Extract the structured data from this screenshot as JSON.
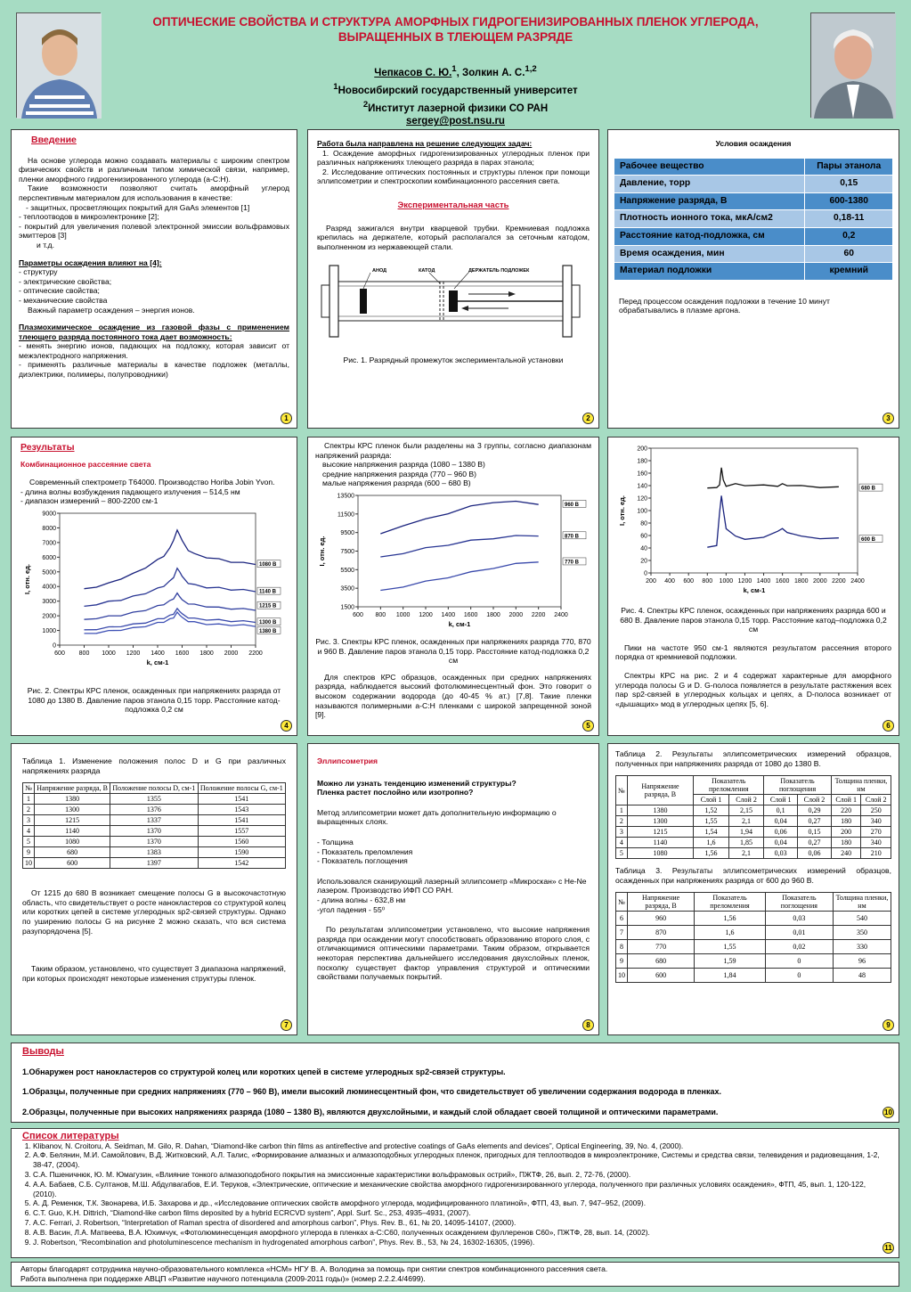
{
  "header": {
    "title_1": "ОПТИЧЕСКИЕ СВОЙСТВА И СТРУКТУРА АМОРФНЫХ ГИДРОГЕНИЗИРОВАННЫХ ПЛЕНОК УГЛЕРОДА,",
    "title_2": "ВЫРАЩЕННЫХ В ТЛЕЮЩЕМ РАЗРЯДЕ",
    "author_1": "Чепкасов С. Ю.",
    "author_1_sup": "1",
    "author_2": ", Золкин А. С.",
    "author_2_sup": "1,2",
    "aff_1_sup": "1",
    "aff_1": "Новосибирский государственный университет",
    "aff_2_sup": "2",
    "aff_2": "Институт лазерной физики СО РАН",
    "email": "sergey@post.nsu.ru"
  },
  "p1": {
    "heading": "Введение",
    "para1": "На основе углерода можно создавать материалы с широким спектром физических свойств и различным типом химической связи, например, пленки аморфного гидрогенизированного углерода (a-C:H).",
    "para2": "Такие возможности позволяют считать аморфный углерод перспективным материалом для использования в качестве:",
    "l1": "- защитных, просветляющих покрытий для GaAs элементов [1]",
    "l2": "- теплоотводов в микроэлектронике [2];",
    "l3": "- покрытий для увеличения полевой электронной эмиссии вольфрамовых эмиттеров [3]",
    "l4": "и т.д.",
    "params_head": "Параметры осаждения влияют на [4]:",
    "p_l1": "- структуру",
    "p_l2": "- электрические свойства;",
    "p_l3": "- оптические свойства;",
    "p_l4": "- механические свойства",
    "p_note": "Важный параметр осаждения – энергия ионов.",
    "plasma_head": "Плазмохимическое осаждение из газовой фазы с применением тлеющего разряда постоянного тока дает возможность:",
    "pl1": "- менять энергию ионов, падающих на подложку, которая зависит от межэлектродного напряжения.",
    "pl2": "- применять различные материалы в качестве подложек (металлы, диэлектрики, полимеры, полупроводники)",
    "num": "1"
  },
  "p2": {
    "task_head": "Работа была направлена на решение следующих задач:",
    "task1": "1. Осаждение аморфных гидрогенизированных углеродных пленок при различных напряжениях тлеющего разряда в парах этанола;",
    "task2": "2. Исследование оптических постоянных и структуры пленок при помощи эллипсометрии и спектроскопии комбинационного рассеяния света.",
    "exp_head": "Экспериментальная часть",
    "exp_text": "Разряд зажигался внутри кварцевой трубки. Кремниевая подложка крепилась на держателе, который располагался за сеточным катодом, выполненном из нержавеющей стали.",
    "lbl_anode": "АНОД",
    "lbl_cathode": "КАТОД",
    "lbl_holder": "ДЕРЖАТЕЛЬ ПОДЛОЖЕК",
    "caption": "Рис. 1. Разрядный промежуток экспериментальной установки",
    "num": "2"
  },
  "p3": {
    "heading": "Условия осаждения",
    "rows": [
      {
        "k": "Рабочее вещество",
        "v": "Пары этанола"
      },
      {
        "k": "Давление, торр",
        "v": "0,15"
      },
      {
        "k": "Напряжение разряда, В",
        "v": "600-1380"
      },
      {
        "k": "Плотность ионного тока, мкА/см2",
        "v": "0,18-11"
      },
      {
        "k": "Расстояние катод-подложка, см",
        "v": "0,2"
      },
      {
        "k": "Время осаждения, мин",
        "v": "60"
      },
      {
        "k": "Материал подложки",
        "v": "кремний"
      }
    ],
    "note": "Перед процессом осаждения подложки в течение 10 минут обрабатывались в плазме аргона.",
    "num": "3"
  },
  "p4": {
    "heading": "Результаты",
    "sub": "Комбинационное рассеяние света",
    "t1": "Современный спектрометр T64000. Производство Horiba Jobin Yvon.",
    "t2": "- длина волны возбуждения падающего излучения – 514,5 нм",
    "t3": "- диапазон измерений – 800-2200 см-1",
    "caption": "Рис. 2. Спектры КРС пленок, осажденных при напряжениях разряда от 1080 до 1380 В. Давление паров этанола 0,15 торр. Расстояние катод-подложка 0,2 см",
    "num": "4"
  },
  "p5": {
    "t1": "Спектры КРС пленок были разделены на 3 группы, согласно диапазонам напряжений разряда:",
    "t2": "высокие напряжения разряда (1080 – 1380 В)",
    "t3": "средние напряжения разряда (770 – 960 В)",
    "t4": "малые напряжения разряда (600 – 680 В)",
    "caption": "Рис. 3. Спектры КРС пленок, осажденных при напряжениях разряда 770, 870 и 960 В. Давление паров этанола 0,15 торр. Расстояние катод-подложка 0,2 см",
    "text": "Для спектров КРС образцов, осажденных при средних напряжениях разряда, наблюдается высокий фотолюминесцентный фон. Это говорит о высоком содержании водорода (до 40-45 % ат.) [7,8]. Такие пленки называются полимерными a-C:H пленками с широкой запрещенной зоной [9].",
    "num": "5"
  },
  "p6": {
    "caption": "Рис. 4. Спектры КРС пленок, осажденных при напряжениях разряда 600 и 680 В. Давление паров этанола 0,15 торр. Расстояние катод–подложка 0,2 см",
    "t1": "Пики на частоте 950 см-1 являются результатом рассеяния второго порядка от кремниевой подложки.",
    "t2": "Спектры КРС на рис. 2 и 4 содержат характерные для аморфного углерода полосы G и D. G-полоса появляется в результате растяжения всех пар sp2-связей в углеродных кольцах и цепях, а D-полоса возникает от «дышащих» мод в углеродных цепях [5, 6].",
    "num": "6"
  },
  "p7": {
    "caption": "Таблица 1. Изменение положения полос D и G при различных напряжениях разряда",
    "headers": [
      "№",
      "Напряжение разряда, В",
      "Положение полосы D, см-1",
      "Положение полосы G, см-1"
    ],
    "rows": [
      [
        "1",
        "1380",
        "1355",
        "1541"
      ],
      [
        "2",
        "1300",
        "1376",
        "1543"
      ],
      [
        "3",
        "1215",
        "1337",
        "1541"
      ],
      [
        "4",
        "1140",
        "1370",
        "1557"
      ],
      [
        "5",
        "1080",
        "1370",
        "1560"
      ],
      [
        "9",
        "680",
        "1383",
        "1590"
      ],
      [
        "10",
        "600",
        "1397",
        "1542"
      ]
    ],
    "t1": "От 1215 до 680 В возникает смещение полосы G в высокочастотную область, что свидетельствует о росте нанокластеров со структурой колец или коротких цепей в системе углеродных sp2-связей структуры. Однако по уширению полосы G на рисунке 2 можно сказать, что вся система разупорядочена [5].",
    "t2": "Таким образом, установлено, что существует 3 диапазона напряжений, при которых происходят некоторые изменения структуры пленок.",
    "num": "7"
  },
  "p8": {
    "heading": "Эллипсометрия",
    "q1": "Можно ли узнать тенденцию изменений структуры?",
    "q2": "Пленка растет послойно или изотропно?",
    "t1": "Метод эллипсометрии может дать дополнительную информацию о выращенных слоях.",
    "l1": "- Толщина",
    "l2": "- Показатель преломления",
    "l3": "- Показатель поглощения",
    "t2": "Использовался сканирующий лазерный эллипсометр «Микроскан» с He-Ne лазером. Производство ИФП СО РАН.",
    "t3": "- длина волны - 632,8 нм",
    "t4": "-угол падения - 55⁰",
    "t5": "По результатам эллипсометрии установлено, что высокие напряжения разряда при осаждении могут способствовать образованию второго слоя, с отличающимися оптическими параметрами. Таким образом, открывается некоторая перспектива дальнейшего исследования двухслойных пленок, посколку существует фактор управления структурой и оптическими свойствами получаемых покрытий.",
    "num": "8"
  },
  "p9": {
    "cap2": "Таблица 2. Результаты эллипсометрических измерений образцов, полученных при напряжениях разряда от 1080 до 1380 В.",
    "t2h": [
      "№",
      "Напряжение разряда, В",
      "Показатель преломления",
      "Показатель поглощения",
      "Толщина пленки, нм"
    ],
    "t2sub": [
      "Слой 1",
      "Слой 2",
      "Слой 1",
      "Слой 2",
      "Слой 1",
      "Слой 2"
    ],
    "t2rows": [
      [
        "1",
        "1380",
        "1,52",
        "2,15",
        "0,1",
        "0,29",
        "220",
        "250"
      ],
      [
        "2",
        "1300",
        "1,55",
        "2,1",
        "0,04",
        "0,27",
        "180",
        "340"
      ],
      [
        "3",
        "1215",
        "1,54",
        "1,94",
        "0,06",
        "0,15",
        "200",
        "270"
      ],
      [
        "4",
        "1140",
        "1,6",
        "1,85",
        "0,04",
        "0,27",
        "180",
        "340"
      ],
      [
        "5",
        "1080",
        "1,56",
        "2,1",
        "0,03",
        "0,06",
        "240",
        "210"
      ]
    ],
    "cap3": "Таблица 3. Результаты эллипсометрических измерений образцов, осажденных при напряжениях разряда от 600 до 960 В.",
    "t3h": [
      "№",
      "Напряжение разряда, В",
      "Показатель преломления",
      "Показатель поглощения",
      "Толщина пленки, нм"
    ],
    "t3rows": [
      [
        "6",
        "960",
        "1,56",
        "0,03",
        "540"
      ],
      [
        "7",
        "870",
        "1,6",
        "0,01",
        "350"
      ],
      [
        "8",
        "770",
        "1,55",
        "0,02",
        "330"
      ],
      [
        "9",
        "680",
        "1,59",
        "0",
        "96"
      ],
      [
        "10",
        "600",
        "1,84",
        "0",
        "48"
      ]
    ],
    "num": "9"
  },
  "p10": {
    "heading": "Выводы",
    "c1": "1.Обнаружен рост нанокластеров со структурой колец или коротких цепей в системе углеродных sp2-связей структуры.",
    "c2": "1.Образцы, полученные при средних напряжениях (770 – 960 В), имели высокий люминесцентный фон, что свидетельствует об увеличении содержания водорода в пленках.",
    "c3": "2.Образцы, полученные при высоких напряжениях разряда (1080 – 1380 В), являются двухслойными, и каждый слой обладает своей толщиной и оптическими параметрами.",
    "num": "10"
  },
  "p11": {
    "heading": "Список литературы",
    "refs": [
      "Klibanov, N. Croitoru, A. Seidman, M. Gilo, R. Dahan, “Diamond-like carbon thin films as antireflective and protective coatings of GaAs elements and devices”, Optical Engineering, 39, No. 4, (2000).",
      "А.Ф. Белянин, М.И. Самойлович, В.Д. Житковский, А.Л. Талис, «Формирование алмазных и алмазоподобных углеродных пленок, пригодных для теплоотводов в микроэлектронике, Системы и средства связи, телевидения и радиовещания, 1-2, 38-47, (2004).",
      "С.А. Пшеничнюк, Ю. М. Юмагузин, «Влияние тонкого алмазоподобного покрытия на эмиссионные характеристики вольфрамовых острий», ПЖТФ, 26, вып. 2, 72-76, (2000).",
      "А.А. Бабаев, С.Б. Султанов, М.Ш. Абдулвагабов, Е.И. Теруков, «Электрические, оптические и механические свойства аморфного гидрогенизированного углерода, полученного при различных условиях осаждения», ФТП, 45, вып. 1, 120-122, (2010).",
      "А. Д. Ременюк, Т.К. Звонарева, И.Б. Захарова и др., «Исследование оптических свойств аморфного углерода, модифицированного платиной», ФТП, 43, вып. 7, 947–952, (2009).",
      "C.T. Guo, K.H. Dittrich, “Diamond-like carbon films deposited by a hybrid ECRCVD system”, Appl. Surf. Sc., 253, 4935–4931, (2007).",
      "A.C. Ferrari, J. Robertson, “Interpretation of Raman spectra of disordered and amorphous carbon”, Phys. Rev. B., 61, № 20, 14095-14107, (2000).",
      "А.В. Васин, Л.А. Матвеева, В.А. Юхимчук, «Фотолюминесценция аморфного углерода в пленках a-C:C60, полученных осаждением фуллеренов C60», ПЖТФ, 28, вып. 14, (2002).",
      "J. Robertson, “Recombination and photoluminescence mechanism in hydrogenated amorphous carbon”, Phys. Rev. B., 53, № 24, 16302-16305, (1996)."
    ],
    "num": "11"
  },
  "footer": {
    "l1": "Авторы благодарят сотрудника научно-образовательного комплекса «НСМ» НГУ В. А. Володина за помощь при снятии спектров комбинационного рассеяния света.",
    "l2": "Работа выполнена при поддержке АВЦП «Развитие научного потенциала (2009-2011 годы)» (номер 2.2.2.4/4699)."
  },
  "chart_data": [
    {
      "type": "line",
      "id": "fig2",
      "xlabel": "k, см-1",
      "ylabel": "I, отн. ед.",
      "xlim": [
        600,
        2200
      ],
      "ylim": [
        0,
        9000
      ],
      "xticks": [
        600,
        800,
        1000,
        1200,
        1400,
        1600,
        1800,
        2000,
        2200
      ],
      "yticks": [
        0,
        1000,
        2000,
        3000,
        4000,
        5000,
        6000,
        7000,
        8000,
        9000
      ],
      "x": [
        800,
        900,
        1000,
        1100,
        1200,
        1300,
        1400,
        1450,
        1500,
        1530,
        1560,
        1580,
        1600,
        1650,
        1700,
        1800,
        1900,
        2000,
        2100,
        2200
      ],
      "series": [
        {
          "name": "1080 В",
          "values": [
            3800,
            4000,
            4200,
            4550,
            4850,
            5300,
            5800,
            6100,
            6600,
            7200,
            7800,
            7550,
            7100,
            6500,
            6200,
            6000,
            5850,
            5700,
            5600,
            5550
          ]
        },
        {
          "name": "1140 В",
          "values": [
            2600,
            2800,
            2950,
            3100,
            3300,
            3550,
            3850,
            4050,
            4350,
            4650,
            5200,
            5050,
            4650,
            4250,
            4100,
            3950,
            3900,
            3800,
            3750,
            3700
          ]
        },
        {
          "name": "1215 В",
          "values": [
            1700,
            1850,
            1950,
            2050,
            2200,
            2400,
            2650,
            2800,
            3000,
            3200,
            3500,
            3350,
            3050,
            2850,
            2750,
            2650,
            2550,
            2500,
            2450,
            2420
          ]
        },
        {
          "name": "1300 В",
          "values": [
            1000,
            1100,
            1200,
            1300,
            1400,
            1550,
            1750,
            1850,
            2000,
            2150,
            2450,
            2350,
            2100,
            1900,
            1800,
            1750,
            1700,
            1650,
            1620,
            1600
          ]
        },
        {
          "name": "1380 В",
          "values": [
            750,
            850,
            950,
            1050,
            1150,
            1300,
            1500,
            1600,
            1750,
            1900,
            2200,
            2100,
            1850,
            1650,
            1550,
            1450,
            1400,
            1380,
            1350,
            1320
          ]
        }
      ]
    },
    {
      "type": "line",
      "id": "fig3",
      "xlabel": "k, см-1",
      "ylabel": "I, отн. ед.",
      "xlim": [
        600,
        2400
      ],
      "ylim": [
        1500,
        13500
      ],
      "xticks": [
        600,
        800,
        1000,
        1200,
        1400,
        1600,
        1800,
        2000,
        2200,
        2400
      ],
      "yticks": [
        1500,
        3500,
        5500,
        7500,
        9500,
        11500,
        13500
      ],
      "x": [
        800,
        1000,
        1200,
        1400,
        1600,
        1800,
        2000,
        2200
      ],
      "series": [
        {
          "name": "960 В",
          "values": [
            9300,
            10300,
            10900,
            11600,
            12300,
            12800,
            12800,
            12600
          ]
        },
        {
          "name": "870 В",
          "values": [
            6800,
            7300,
            7800,
            8200,
            8600,
            8900,
            9100,
            9200
          ]
        },
        {
          "name": "770 В",
          "values": [
            3200,
            3700,
            4200,
            4700,
            5200,
            5700,
            6100,
            6400
          ]
        }
      ]
    },
    {
      "type": "line",
      "id": "fig4",
      "xlabel": "k, см-1",
      "ylabel": "I, отн. ед.",
      "xlim": [
        200,
        2400
      ],
      "ylim": [
        0,
        200
      ],
      "xticks": [
        200,
        400,
        600,
        800,
        1000,
        1200,
        1400,
        1600,
        1800,
        2000,
        2200,
        2400
      ],
      "yticks": [
        0,
        20,
        40,
        60,
        80,
        100,
        120,
        140,
        160,
        180,
        200
      ],
      "x": [
        800,
        900,
        930,
        950,
        970,
        1000,
        1100,
        1200,
        1400,
        1550,
        1600,
        1650,
        1800,
        2000,
        2200
      ],
      "series": [
        {
          "name": "680 В",
          "values": [
            135,
            138,
            140,
            170,
            148,
            140,
            142,
            141,
            140,
            140,
            142,
            141,
            139,
            138,
            137
          ]
        },
        {
          "name": "600 В",
          "values": [
            40,
            45,
            95,
            125,
            100,
            72,
            58,
            55,
            56,
            68,
            70,
            66,
            58,
            56,
            55
          ]
        }
      ]
    }
  ]
}
